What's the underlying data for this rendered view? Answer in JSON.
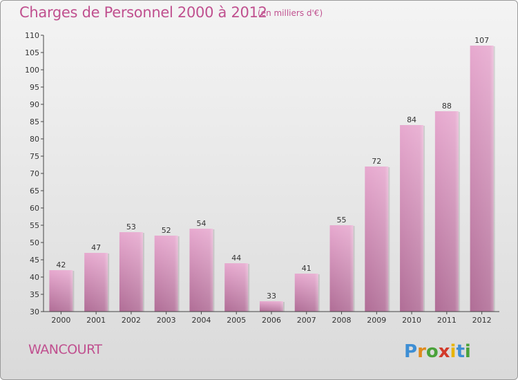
{
  "header": {
    "title": "Charges de Personnel 2000 à 2012",
    "subtitle": "(en milliers d'€)"
  },
  "footer": {
    "commune": "WANCOURT",
    "logo_text": "Proxiti"
  },
  "colors": {
    "title": "#c0508f",
    "bar_top": "#e7a9cf",
    "bar_bottom": "#b06d96"
  },
  "chart_data": {
    "type": "bar",
    "categories": [
      "2000",
      "2001",
      "2002",
      "2003",
      "2004",
      "2005",
      "2006",
      "2007",
      "2008",
      "2009",
      "2010",
      "2011",
      "2012"
    ],
    "values": [
      42,
      47,
      53,
      52,
      54,
      44,
      33,
      41,
      55,
      72,
      84,
      88,
      107
    ],
    "ylim": [
      30,
      110
    ],
    "yticks": [
      30,
      35,
      40,
      45,
      50,
      55,
      60,
      65,
      70,
      75,
      80,
      85,
      90,
      95,
      100,
      105,
      110
    ],
    "grid": false,
    "legend": "none"
  }
}
